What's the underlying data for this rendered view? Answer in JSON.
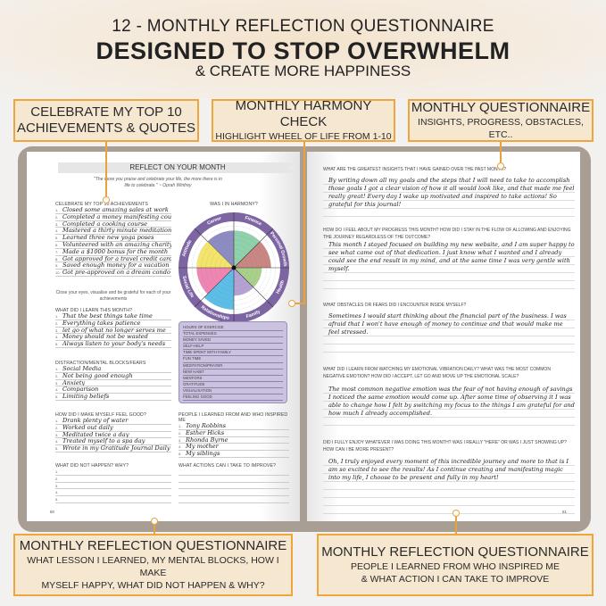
{
  "header": {
    "line1": "12 - MONTHLY REFLECTION QUESTIONNAIRE",
    "line2": "DESIGNED TO STOP OVERWHELM",
    "line3": "& CREATE MORE HAPPINESS"
  },
  "callouts": {
    "achievements": {
      "title": "CELEBRATE MY TOP 10",
      "sub": "ACHIEVEMENTS & QUOTES"
    },
    "harmony": {
      "title": "MONTHLY HARMONY CHECK",
      "sub": "HIGHLIGHT WHEEL OF LIFE FROM 1-10"
    },
    "questionnaire": {
      "title": "MONTHLY QUESTIONNAIRE",
      "sub": "INSIGHTS, PROGRESS, OBSTACLES, ETC.."
    },
    "bottom_left": {
      "title": "MONTHLY REFLECTION QUESTIONNAIRE",
      "sub1": "WHAT LESSON I LEARNED, MY MENTAL BLOCKS, HOW I MAKE",
      "sub2": "MYSELF HAPPY, WHAT DID NOT HAPPEN & WHY?"
    },
    "bottom_right": {
      "title": "MONTHLY REFLECTION QUESTIONNAIRE",
      "sub1": "PEOPLE I LEARNED FROM WHO INSPIRED ME",
      "sub2": "& WHAT ACTION I CAN TAKE TO IMPROVE"
    }
  },
  "left_page": {
    "banner": "REFLECT ON YOUR MONTH",
    "quote": "\"The more you praise and celebrate your life, the more there is in life to celebrate.\" ~ Oprah Winfrey",
    "achievements": {
      "heading": "CELEBRATE MY TOP 10 ACHIEVEMENTS",
      "items": [
        "Closed some amazing sales at work",
        "Completed a money manifesting course",
        "Completed a cooking course",
        "Mastered a thirty minute meditation",
        "Learned three new yoga poses",
        "Volunteered with an amazing charity",
        "Made a $1000 bonus for the month",
        "Got approved for a travel credit card",
        "Saved enough money for a vacation",
        "Got pre-approved on a dream condo"
      ]
    },
    "achievements_note": "Close your eyes, visualise and be grateful for each of your achievements",
    "learned": {
      "heading": "WHAT DID I LEARN THIS MONTH?",
      "items": [
        "That the best things take time",
        "Everything takes patience",
        "let go of what no longer serves me",
        "Money should not be wasted",
        "Always listen to your body's needs"
      ]
    },
    "blocks": {
      "heading": "DISTRACTION/MENTAL BLOCKS/FEARS",
      "items": [
        "Social Media",
        "Not being good enough",
        "Anxiety",
        "Comparison",
        "Limiting beliefs"
      ]
    },
    "feel_good": {
      "heading": "HOW DID I MAKE MYSELF FEEL GOOD?",
      "items": [
        "Drank plenty of water",
        "Worked out daily",
        "Meditated twice a day",
        "Treated myself to a spa day",
        "Wrote in my Gratitude Journal Daily"
      ]
    },
    "not_happen": {
      "heading": "WHAT DID NOT HAPPEN? WHY?",
      "items": [
        "",
        "",
        "",
        "",
        ""
      ]
    },
    "harmony": {
      "heading": "WAS I IN HARMONY?",
      "areas": [
        {
          "label": "Career",
          "color": "#8d8cc2",
          "level": 8
        },
        {
          "label": "Finance",
          "color": "#8fd1ab",
          "level": 8
        },
        {
          "label": "Personal Growth",
          "color": "#c98784",
          "level": 8
        },
        {
          "label": "Health",
          "color": "#a9d08a",
          "level": 6
        },
        {
          "label": "Family",
          "color": "#b4a2d4",
          "level": 6
        },
        {
          "label": "Relationships",
          "color": "#5cbde6",
          "level": 9
        },
        {
          "label": "Social Life",
          "color": "#ef86b2",
          "level": 8
        },
        {
          "label": "Attitude",
          "color": "#f3e46c",
          "level": 8
        }
      ]
    },
    "tracker": [
      "HOURS OF EXERCISE",
      "TOTAL EXPENSES",
      "MONEY SAVED",
      "SELF-HELP",
      "TIME SPENT WITH FAMILY",
      "FUN TIME",
      "MEDITATION/PRAYER",
      "NEW HABIT",
      "MENTORS",
      "GRATITUDE",
      "VISUALISATION",
      "FEELING GOOD"
    ],
    "inspired": {
      "heading": "PEOPLE I LEARNED FROM AND WHO INSPIRED ME",
      "items": [
        "Tony Robbins",
        "Esther Hicks",
        "Rhonda Byrne",
        "My mother",
        "My siblings"
      ]
    },
    "actions": {
      "heading": "WHAT ACTIONS CAN I TAKE TO IMPROVE?",
      "items": [
        "",
        "",
        "",
        "",
        ""
      ]
    },
    "page_number": "80"
  },
  "right_page": {
    "questions": [
      {
        "q": "WHAT ARE THE GREATEST INSIGHTS THAT I HAVE GAINED OVER THE PAST MONTH?",
        "a": "By writing down all my goals and the steps that I will need to take to accomplish those goals I got a clear vision of how it all would look like, and that made me feel really great! Every day I wake up motivated and inspired to take actions! So grateful for this journal!"
      },
      {
        "q": "HOW DO I FEEL ABOUT MY PROGRESS THIS MONTH? HOW DID I STAY IN THE FLOW OF ALLOWING AND ENJOYING THE JOURNEY REGARDLESS OF THE OUTCOME?",
        "a": "This month I stayed focused on building my new website, and I am super happy to see what came out of that dedication. I just know what I wanted and I already could see the end result in my mind, and at the same time I was very gentle with myself."
      },
      {
        "q": "WHAT OBSTACLES OR FEARS DID I ENCOUNTER INSIDE MYSELF?",
        "a": "Sometimes I would start thinking about the financial part of the business. I was afraid that I won't have enough of money to continue and that would make me feel stressed."
      },
      {
        "q": "WHAT DID I LEARN FROM WATCHING MY EMOTIONAL VIBRATION DAILY? WHAT WAS THE MOST COMMON NEGATIVE EMOTION? HOW DID I ACCEPT, LET GO AND MOVE UP THE EMOTIONAL SCALE?",
        "a": "The most common negative emotion was the fear of not having enough of savings I noticed the same emotion would come up. After some time of observing it I was able to change how I felt by switching my focus to the things I am grateful for and how much I already accomplished."
      },
      {
        "q": "DID I FULLY ENJOY WHATEVER I WAS DOING THIS MONTH? WAS I REALLY \"HERE\" OR WAS I JUST SHOWING UP? HOW CAN I BE MORE PRESENT?",
        "a": "Oh, I truly enjoyed every moment of this incredible journey and more to that is I am so excited to see the results! As I continue creating and manifesting magic into my life, I choose to be present and fully in my heart!"
      }
    ],
    "page_number": "81"
  },
  "colors": {
    "accent": "#f0a53a",
    "callout_fill": "#f6e7d1",
    "cover": "#a89e94",
    "wheel_ring": "#7d64a2",
    "tracker_fill": "#cbc2e0"
  }
}
